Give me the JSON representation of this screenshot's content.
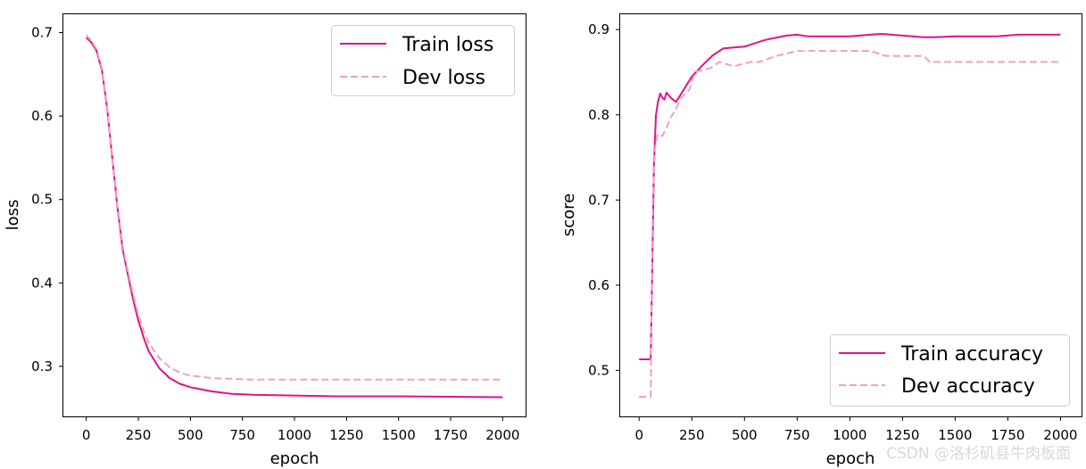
{
  "watermark": "CSDN @洛杉矶县牛肉板面",
  "colors": {
    "train": "#e0128a",
    "dev": "#f0a0c0"
  },
  "chart_data": [
    {
      "type": "line",
      "xlabel": "epoch",
      "ylabel": "loss",
      "xlim": [
        -110,
        2110
      ],
      "ylim": [
        0.24,
        0.722
      ],
      "xticks": [
        0,
        250,
        500,
        750,
        1000,
        1250,
        1500,
        1750,
        2000
      ],
      "yticks": [
        0.3,
        0.4,
        0.5,
        0.6,
        0.7
      ],
      "legend_position": "upper-right",
      "series": [
        {
          "name": "Train loss",
          "style": "solid",
          "x": [
            0,
            25,
            50,
            75,
            100,
            125,
            150,
            175,
            200,
            225,
            250,
            275,
            300,
            350,
            400,
            450,
            500,
            600,
            700,
            800,
            1000,
            1200,
            1500,
            2000
          ],
          "y": [
            0.694,
            0.688,
            0.678,
            0.655,
            0.61,
            0.55,
            0.49,
            0.44,
            0.41,
            0.38,
            0.355,
            0.335,
            0.318,
            0.298,
            0.286,
            0.279,
            0.275,
            0.27,
            0.267,
            0.266,
            0.265,
            0.264,
            0.264,
            0.263
          ]
        },
        {
          "name": "Dev loss",
          "style": "dashed",
          "x": [
            0,
            25,
            50,
            75,
            100,
            125,
            150,
            175,
            200,
            225,
            250,
            275,
            300,
            350,
            400,
            450,
            500,
            600,
            700,
            800,
            1000,
            1200,
            1500,
            2000
          ],
          "y": [
            0.697,
            0.69,
            0.68,
            0.657,
            0.612,
            0.552,
            0.493,
            0.444,
            0.414,
            0.386,
            0.362,
            0.343,
            0.328,
            0.31,
            0.299,
            0.292,
            0.289,
            0.286,
            0.285,
            0.284,
            0.284,
            0.284,
            0.284,
            0.284
          ]
        }
      ]
    },
    {
      "type": "line",
      "xlabel": "epoch",
      "ylabel": "score",
      "xlim": [
        -90,
        2100
      ],
      "ylim": [
        0.446,
        0.918
      ],
      "xticks": [
        0,
        250,
        500,
        750,
        1000,
        1250,
        1500,
        1750,
        2000
      ],
      "yticks": [
        0.5,
        0.6,
        0.7,
        0.8,
        0.9
      ],
      "legend_position": "lower-right",
      "series": [
        {
          "name": "Train accuracy",
          "style": "solid",
          "x": [
            0,
            55,
            62,
            70,
            80,
            90,
            100,
            110,
            120,
            130,
            150,
            175,
            200,
            250,
            300,
            350,
            400,
            450,
            500,
            600,
            700,
            750,
            800,
            1000,
            1100,
            1150,
            1250,
            1300,
            1350,
            1400,
            1500,
            1700,
            1800,
            2000
          ],
          "y": [
            0.513,
            0.513,
            0.62,
            0.74,
            0.8,
            0.816,
            0.825,
            0.82,
            0.818,
            0.826,
            0.82,
            0.815,
            0.825,
            0.845,
            0.858,
            0.87,
            0.878,
            0.879,
            0.88,
            0.888,
            0.893,
            0.894,
            0.892,
            0.892,
            0.894,
            0.895,
            0.893,
            0.892,
            0.891,
            0.891,
            0.892,
            0.892,
            0.894,
            0.894
          ]
        },
        {
          "name": "Dev accuracy",
          "style": "dashed",
          "x": [
            0,
            55,
            58,
            65,
            75,
            85,
            95,
            110,
            130,
            150,
            175,
            200,
            240,
            250,
            270,
            300,
            340,
            380,
            450,
            530,
            570,
            650,
            750,
            820,
            1000,
            1100,
            1170,
            1250,
            1350,
            1380,
            1500,
            1800,
            2000
          ],
          "y": [
            0.469,
            0.469,
            0.56,
            0.7,
            0.76,
            0.775,
            0.778,
            0.775,
            0.785,
            0.797,
            0.807,
            0.82,
            0.83,
            0.84,
            0.851,
            0.852,
            0.855,
            0.862,
            0.857,
            0.862,
            0.862,
            0.869,
            0.875,
            0.875,
            0.875,
            0.875,
            0.869,
            0.869,
            0.869,
            0.862,
            0.862,
            0.862,
            0.862
          ]
        }
      ]
    }
  ]
}
